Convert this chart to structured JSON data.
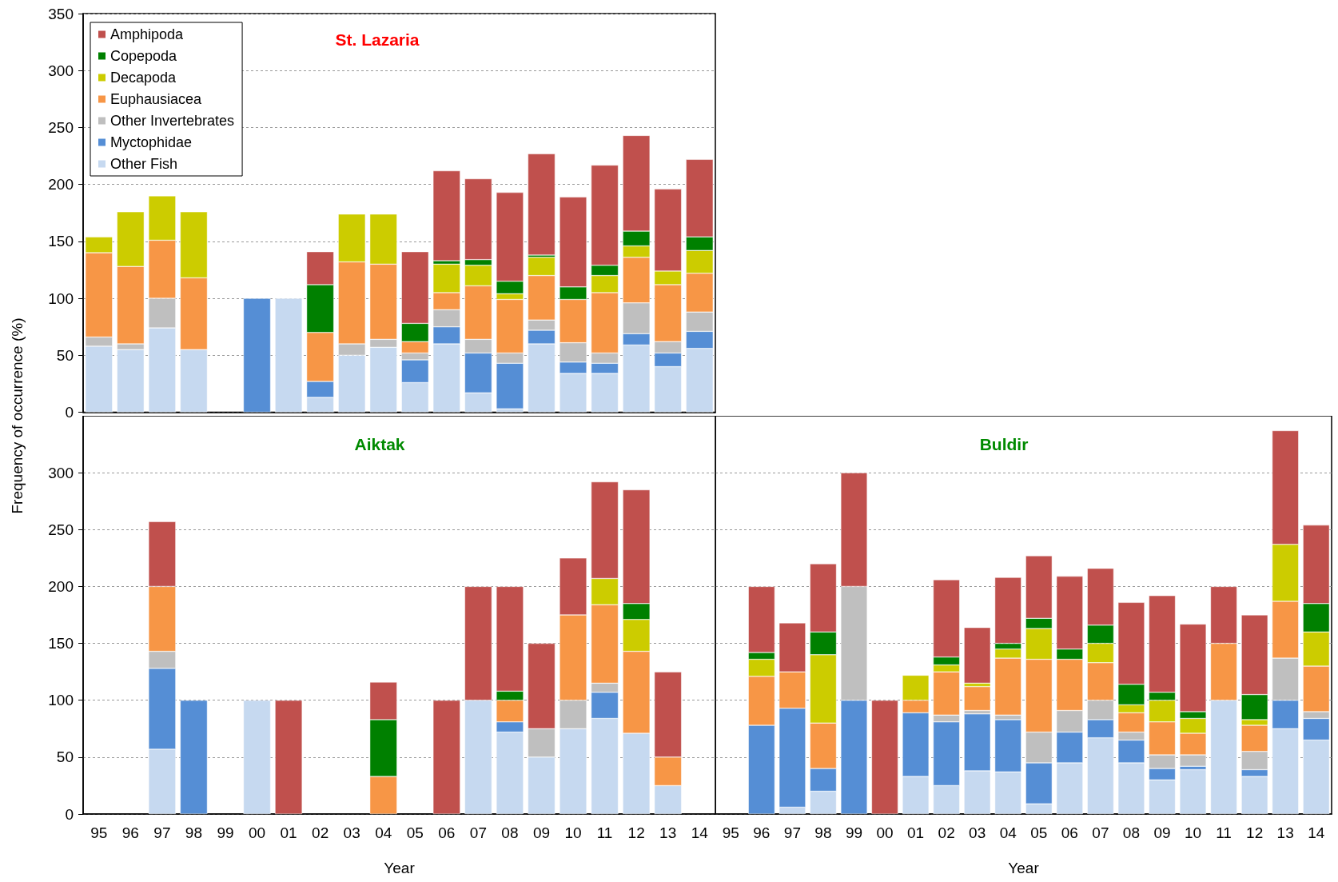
{
  "chart_data": [
    {
      "type": "bar",
      "title": "St. Lazaria",
      "stacked": true,
      "categories": [
        "95",
        "96",
        "97",
        "98",
        "99",
        "00",
        "01",
        "02",
        "03",
        "04",
        "05",
        "06",
        "07",
        "08",
        "09",
        "10",
        "11",
        "12",
        "13",
        "14"
      ],
      "ylim": [
        0,
        350
      ],
      "yticks": [
        0,
        50,
        100,
        150,
        200,
        250,
        300,
        350
      ],
      "grid": "y",
      "legend": "top left",
      "tick_labels": "y",
      "series": [
        {
          "name": "Other Fish",
          "color": "#c6d9f0",
          "values": [
            58,
            55,
            74,
            55,
            null,
            null,
            100,
            13,
            50,
            57,
            26,
            60,
            17,
            3,
            60,
            34,
            34,
            59,
            40,
            56
          ]
        },
        {
          "name": "Myctophidae",
          "color": "#558ed5",
          "values": [
            null,
            null,
            null,
            null,
            null,
            100,
            null,
            14,
            null,
            null,
            20,
            15,
            35,
            40,
            12,
            10,
            9,
            10,
            12,
            15
          ]
        },
        {
          "name": "Other Invertebrates",
          "color": "#bfbfbf",
          "values": [
            8,
            5,
            26,
            null,
            null,
            null,
            null,
            null,
            10,
            7,
            6,
            15,
            12,
            9,
            9,
            17,
            9,
            27,
            10,
            17
          ]
        },
        {
          "name": "Euphausiacea",
          "color": "#f79646",
          "values": [
            74,
            68,
            51,
            63,
            null,
            null,
            null,
            43,
            72,
            66,
            10,
            15,
            47,
            47,
            39,
            38,
            53,
            40,
            50,
            34
          ]
        },
        {
          "name": "Decapoda",
          "color": "#cccc00",
          "values": [
            14,
            48,
            39,
            58,
            null,
            null,
            null,
            null,
            42,
            44,
            null,
            25,
            18,
            5,
            16,
            null,
            15,
            10,
            12,
            20
          ]
        },
        {
          "name": "Copepoda",
          "color": "#008000",
          "values": [
            null,
            null,
            null,
            null,
            null,
            null,
            null,
            42,
            null,
            null,
            16,
            3,
            5,
            11,
            2,
            11,
            9,
            13,
            null,
            12
          ]
        },
        {
          "name": "Amphipoda",
          "color": "#c0504d",
          "values": [
            null,
            null,
            null,
            null,
            null,
            null,
            null,
            29,
            null,
            null,
            63,
            79,
            71,
            78,
            89,
            79,
            88,
            84,
            72,
            68
          ]
        }
      ]
    },
    {
      "type": "bar",
      "title": "Aiktak",
      "xlabel": "Year",
      "ylabel": "Frequency of occurrence (%)",
      "stacked": true,
      "categories": [
        "95",
        "96",
        "97",
        "98",
        "99",
        "00",
        "01",
        "02",
        "03",
        "04",
        "05",
        "06",
        "07",
        "08",
        "09",
        "10",
        "11",
        "12",
        "13",
        "14"
      ],
      "ylim": [
        0,
        350
      ],
      "yticks": [
        0,
        50,
        100,
        150,
        200,
        250,
        300
      ],
      "grid": "y",
      "series": [
        {
          "color": "#c6d9f0",
          "values": [
            null,
            null,
            57,
            null,
            null,
            100,
            null,
            null,
            null,
            null,
            null,
            null,
            100,
            72,
            50,
            75,
            84,
            71,
            25,
            null
          ]
        },
        {
          "color": "#558ed5",
          "values": [
            null,
            null,
            71,
            100,
            null,
            null,
            null,
            null,
            null,
            null,
            null,
            null,
            null,
            9,
            null,
            null,
            23,
            null,
            null,
            null
          ]
        },
        {
          "color": "#bfbfbf",
          "values": [
            null,
            null,
            15,
            null,
            null,
            null,
            null,
            null,
            null,
            null,
            null,
            null,
            null,
            null,
            25,
            25,
            8,
            null,
            null,
            null
          ]
        },
        {
          "color": "#f79646",
          "values": [
            null,
            null,
            57,
            null,
            null,
            null,
            null,
            null,
            null,
            33,
            null,
            null,
            null,
            19,
            null,
            75,
            69,
            72,
            25,
            null
          ]
        },
        {
          "color": "#cccc00",
          "values": [
            null,
            null,
            null,
            null,
            null,
            null,
            null,
            null,
            null,
            null,
            null,
            null,
            null,
            null,
            null,
            null,
            23,
            28,
            null,
            null
          ]
        },
        {
          "color": "#008000",
          "values": [
            null,
            null,
            null,
            null,
            null,
            null,
            null,
            null,
            null,
            50,
            null,
            null,
            null,
            8,
            null,
            null,
            null,
            14,
            null,
            null
          ]
        },
        {
          "color": "#c0504d",
          "values": [
            null,
            null,
            57,
            null,
            null,
            null,
            100,
            null,
            null,
            33,
            null,
            100,
            100,
            92,
            75,
            50,
            85,
            100,
            75,
            null
          ]
        }
      ]
    },
    {
      "type": "bar",
      "title": "Buldir",
      "xlabel": "Year",
      "stacked": true,
      "categories": [
        "95",
        "96",
        "97",
        "98",
        "99",
        "00",
        "01",
        "02",
        "03",
        "04",
        "05",
        "06",
        "07",
        "08",
        "09",
        "10",
        "11",
        "12",
        "13",
        "14"
      ],
      "ylim": [
        0,
        350
      ],
      "yticks": [
        0,
        50,
        100,
        150,
        200,
        250,
        300
      ],
      "grid": "y",
      "tick_labels": "x",
      "series": [
        {
          "color": "#c6d9f0",
          "values": [
            null,
            null,
            6,
            20,
            null,
            null,
            33,
            25,
            38,
            37,
            9,
            45,
            67,
            45,
            30,
            39,
            100,
            33,
            75,
            65
          ]
        },
        {
          "color": "#558ed5",
          "values": [
            null,
            78,
            87,
            20,
            100,
            null,
            56,
            56,
            50,
            46,
            36,
            27,
            16,
            20,
            10,
            3,
            null,
            6,
            25,
            19
          ]
        },
        {
          "color": "#bfbfbf",
          "values": [
            null,
            null,
            null,
            null,
            100,
            null,
            null,
            6,
            3,
            4,
            27,
            19,
            17,
            7,
            12,
            10,
            null,
            16,
            37,
            6
          ]
        },
        {
          "color": "#f79646",
          "values": [
            null,
            43,
            32,
            40,
            null,
            null,
            11,
            38,
            21,
            50,
            64,
            45,
            33,
            17,
            29,
            19,
            50,
            23,
            50,
            40
          ]
        },
        {
          "color": "#cccc00",
          "values": [
            null,
            15,
            null,
            60,
            null,
            null,
            22,
            6,
            3,
            8,
            27,
            null,
            17,
            7,
            19,
            13,
            null,
            5,
            50,
            30
          ]
        },
        {
          "color": "#008000",
          "values": [
            null,
            6,
            null,
            20,
            null,
            null,
            null,
            7,
            null,
            5,
            9,
            9,
            16,
            18,
            7,
            6,
            null,
            22,
            null,
            25
          ]
        },
        {
          "color": "#c0504d",
          "values": [
            null,
            58,
            43,
            60,
            100,
            100,
            null,
            68,
            49,
            58,
            55,
            64,
            50,
            72,
            85,
            77,
            50,
            70,
            100,
            69
          ]
        }
      ]
    }
  ]
}
